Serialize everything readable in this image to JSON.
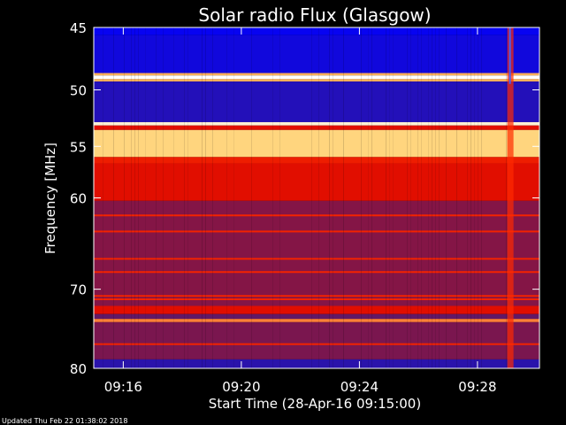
{
  "chart_data": {
    "type": "heatmap",
    "title": "Solar radio Flux (Glasgow)",
    "xlabel": "Start Time (28-Apr-16 09:15:00)",
    "ylabel": "Frequency [MHz]",
    "x_range_minutes": [
      15,
      30.1
    ],
    "y_range_mhz": [
      45,
      80
    ],
    "y_scale": "log",
    "x_ticks": [
      {
        "value": 16,
        "label": "09:16"
      },
      {
        "value": 20,
        "label": "09:20"
      },
      {
        "value": 24,
        "label": "09:24"
      },
      {
        "value": 28,
        "label": "09:28"
      }
    ],
    "y_ticks": [
      {
        "value": 45,
        "label": "45"
      },
      {
        "value": 50,
        "label": "50"
      },
      {
        "value": 55,
        "label": "55"
      },
      {
        "value": 60,
        "label": "60"
      },
      {
        "value": 70,
        "label": "70"
      },
      {
        "value": 80,
        "label": "80"
      }
    ],
    "colormap": [
      "#0000ff",
      "#3a1b8a",
      "#8a1540",
      "#d40000",
      "#ff3000",
      "#ffd070",
      "#ffffff"
    ],
    "frequency_bands": [
      {
        "from": 45.0,
        "to": 45.6,
        "intensity": 0.02
      },
      {
        "from": 45.6,
        "to": 48.6,
        "intensity": 0.05
      },
      {
        "from": 48.6,
        "to": 48.8,
        "intensity": 0.8
      },
      {
        "from": 48.8,
        "to": 49.1,
        "intensity": 1.0
      },
      {
        "from": 49.1,
        "to": 49.3,
        "intensity": 0.8
      },
      {
        "from": 49.3,
        "to": 52.8,
        "intensity": 0.1
      },
      {
        "from": 52.8,
        "to": 53.1,
        "intensity": 0.95
      },
      {
        "from": 53.1,
        "to": 53.5,
        "intensity": 0.55
      },
      {
        "from": 53.5,
        "to": 56.0,
        "intensity": 0.85
      },
      {
        "from": 56.0,
        "to": 56.6,
        "intensity": 0.6
      },
      {
        "from": 56.6,
        "to": 60.3,
        "intensity": 0.55
      },
      {
        "from": 60.3,
        "to": 72.0,
        "intensity": 0.32
      },
      {
        "from": 72.0,
        "to": 73.0,
        "intensity": 0.55
      },
      {
        "from": 73.0,
        "to": 73.6,
        "intensity": 0.25
      },
      {
        "from": 73.6,
        "to": 74.0,
        "intensity": 0.75
      },
      {
        "from": 74.0,
        "to": 78.8,
        "intensity": 0.3
      },
      {
        "from": 78.8,
        "to": 80.0,
        "intensity": 0.12
      }
    ],
    "emission_lines_mhz": [
      61.8,
      63.5,
      66.5,
      68.0,
      70.8,
      71.2,
      76.8
    ],
    "burst": {
      "minute": 29.1,
      "from_mhz": 45,
      "to_mhz": 80
    }
  },
  "footer": {
    "updated": "Updated Thu Feb 22 01:38:02 2018"
  }
}
